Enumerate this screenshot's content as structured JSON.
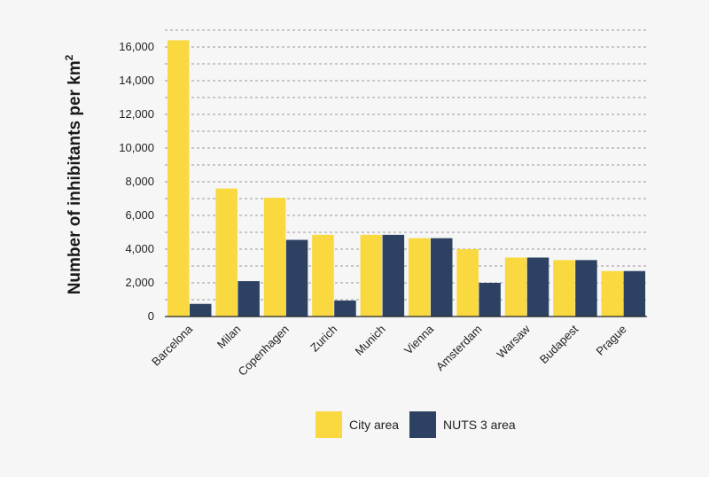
{
  "chart_data": {
    "type": "bar",
    "title": "",
    "xlabel": "",
    "ylabel": "Number of inhibitants per km",
    "ylabel_superscript": "2",
    "ylim": [
      0,
      17000
    ],
    "grid_step": 1000,
    "ytick_values": [
      0,
      2000,
      4000,
      6000,
      8000,
      10000,
      12000,
      14000,
      16000
    ],
    "ytick_labels": [
      "0",
      "2,000",
      "4,000",
      "6,000",
      "8,000",
      "10,000",
      "12,000",
      "14,000",
      "16,000"
    ],
    "grid": true,
    "legend_position": "bottom",
    "categories": [
      "Barcelona",
      "Milan",
      "Copenhagen",
      "Zurich",
      "Munich",
      "Vienna",
      "Amsterdam",
      "Warsaw",
      "Budapest",
      "Prague"
    ],
    "series": [
      {
        "name": "City area",
        "color": "#f9d93f",
        "values": [
          16400,
          7600,
          7050,
          4850,
          4850,
          4650,
          4000,
          3500,
          3350,
          2700
        ]
      },
      {
        "name": "NUTS 3 area",
        "color": "#2d4263",
        "values": [
          750,
          2100,
          4550,
          950,
          4850,
          4650,
          2000,
          3500,
          3350,
          2700
        ]
      }
    ]
  }
}
